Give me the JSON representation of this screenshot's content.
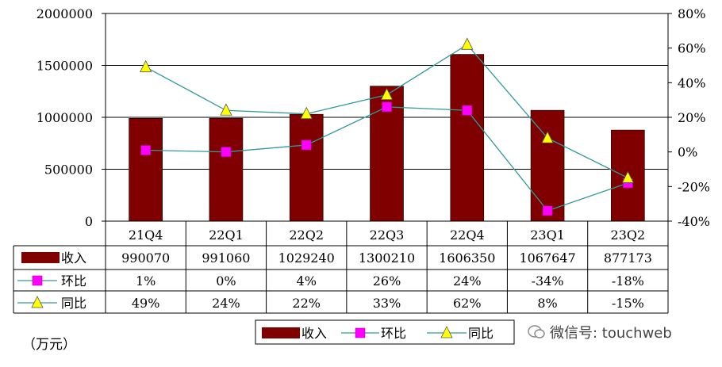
{
  "unit_label": "（万元）",
  "watermark": "微信号: touchweb",
  "colors": {
    "bar": "#800000",
    "qoq": "#ff00ff",
    "yoy": "#ffff00",
    "line": "#339999"
  },
  "chart_data": {
    "type": "bar",
    "categories": [
      "21Q4",
      "22Q1",
      "22Q2",
      "22Q3",
      "22Q4",
      "23Q1",
      "23Q2"
    ],
    "y_left": {
      "ticks": [
        "2000000",
        "1500000",
        "1000000",
        "500000",
        "0"
      ],
      "ylim": [
        0,
        2000000
      ]
    },
    "y_right": {
      "ticks": [
        "80%",
        "60%",
        "40%",
        "20%",
        "0%",
        "-20%",
        "-40%"
      ],
      "ylim": [
        -40,
        80
      ]
    },
    "series": [
      {
        "name": "收入",
        "kind": "bar",
        "values": [
          990070,
          991060,
          1029240,
          1300210,
          1606350,
          1067647,
          877173
        ],
        "labels": [
          "990070",
          "991060",
          "1029240",
          "1300210",
          "1606350",
          "1067647",
          "877173"
        ]
      },
      {
        "name": "环比",
        "kind": "line",
        "marker": "square",
        "values": [
          1,
          0,
          4,
          26,
          24,
          -34,
          -18
        ],
        "labels": [
          "1%",
          "0%",
          "4%",
          "26%",
          "24%",
          "-34%",
          "-18%"
        ]
      },
      {
        "name": "同比",
        "kind": "line",
        "marker": "triangle",
        "values": [
          49,
          24,
          22,
          33,
          62,
          8,
          -15
        ],
        "labels": [
          "49%",
          "24%",
          "22%",
          "33%",
          "62%",
          "8%",
          "-15%"
        ]
      }
    ]
  }
}
